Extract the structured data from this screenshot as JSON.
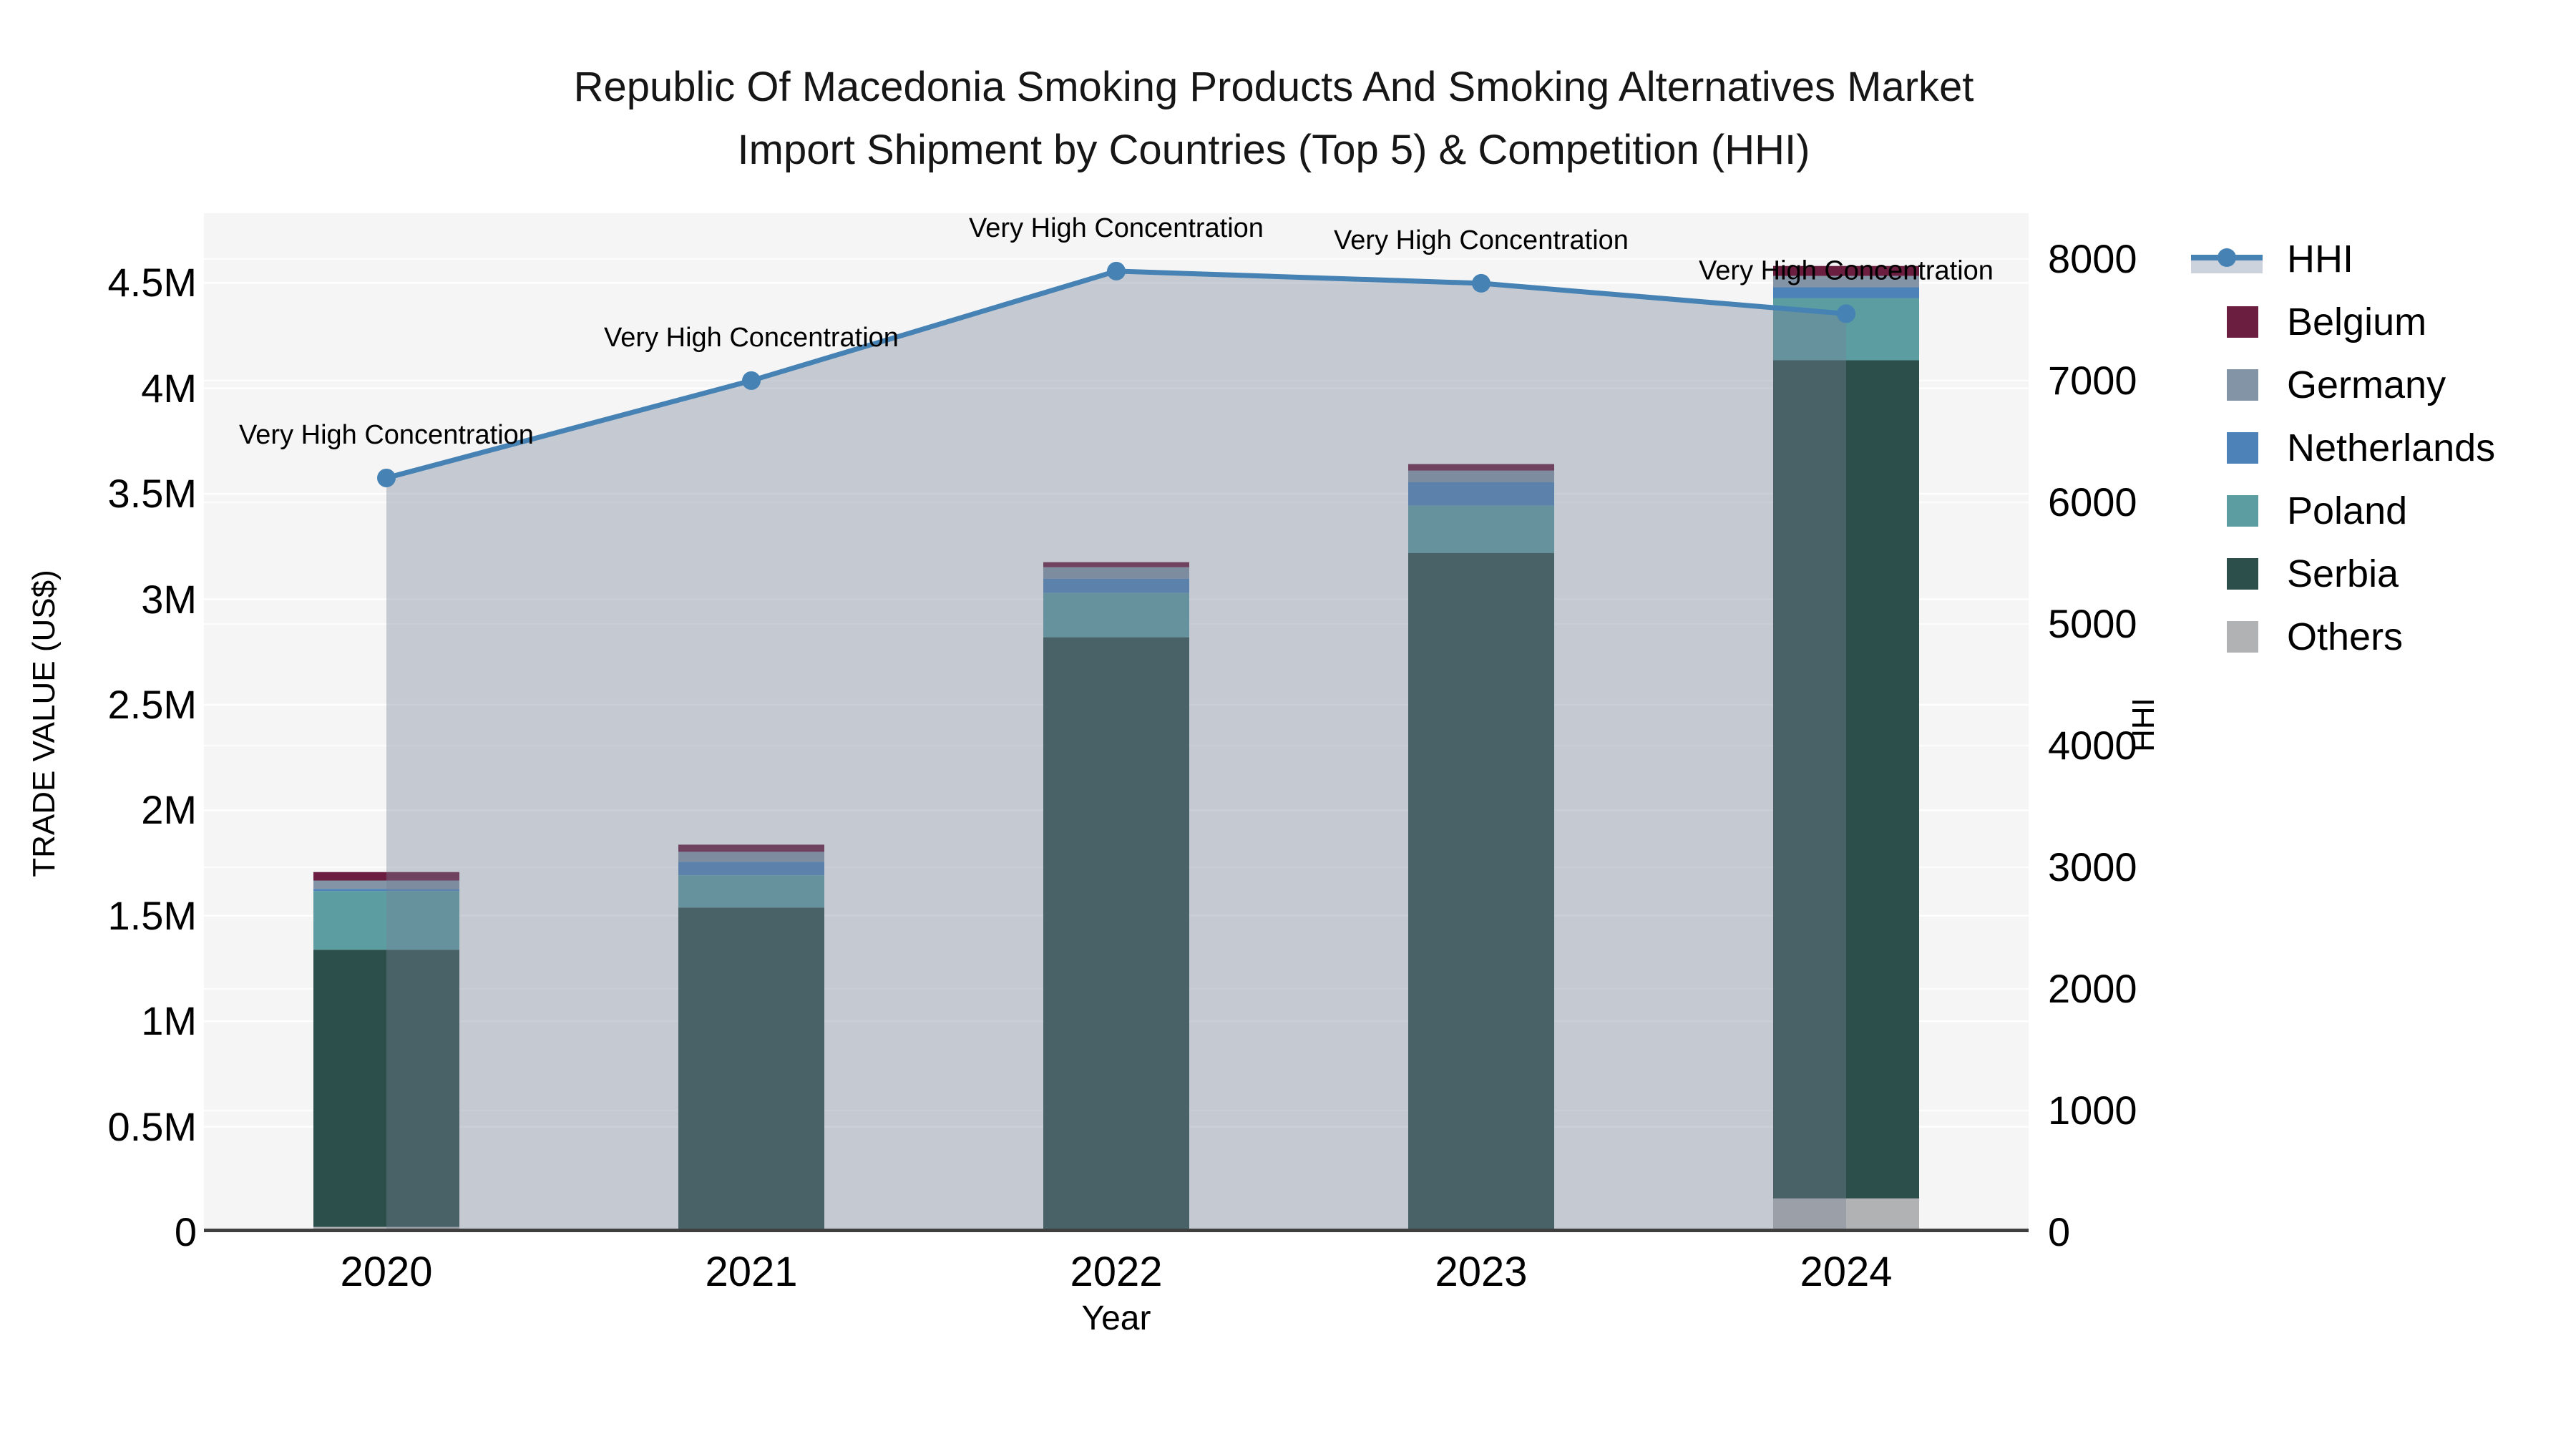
{
  "title": {
    "line1": "Republic Of Macedonia Smoking Products And Smoking Alternatives Market",
    "line2": "Import Shipment by Countries (Top 5) & Competition (HHI)"
  },
  "axes": {
    "y_left": {
      "title": "TRADE VALUE (US$)",
      "tick_labels": [
        "0",
        "0.5M",
        "1M",
        "1.5M",
        "2M",
        "2.5M",
        "3M",
        "3.5M",
        "4M",
        "4.5M"
      ],
      "tick_values": [
        0,
        500000,
        1000000,
        1500000,
        2000000,
        2500000,
        3000000,
        3500000,
        4000000,
        4500000
      ]
    },
    "y_right": {
      "title": "HHI",
      "tick_labels": [
        "0",
        "1000",
        "2000",
        "3000",
        "4000",
        "5000",
        "6000",
        "7000",
        "8000"
      ],
      "tick_values": [
        0,
        1000,
        2000,
        3000,
        4000,
        5000,
        6000,
        7000,
        8000
      ]
    },
    "x": {
      "title": "Year",
      "categories": [
        "2020",
        "2021",
        "2022",
        "2023",
        "2024"
      ]
    }
  },
  "legend": [
    {
      "label": "HHI",
      "type": "line",
      "color": "#4682b4",
      "band_color": "#ccd3dd"
    },
    {
      "label": "Belgium",
      "type": "box",
      "color": "#6b1e3f"
    },
    {
      "label": "Germany",
      "type": "box",
      "color": "#8294a5"
    },
    {
      "label": "Netherlands",
      "type": "box",
      "color": "#4d82b8"
    },
    {
      "label": "Poland",
      "type": "box",
      "color": "#5b9da1"
    },
    {
      "label": "Serbia",
      "type": "box",
      "color": "#2d4f4c"
    },
    {
      "label": "Others",
      "type": "box",
      "color": "#b0b2b4"
    }
  ],
  "chart_data": {
    "type": "bar",
    "subtype": "stacked-bars-with-secondary-axis-line-area",
    "title": "Republic Of Macedonia Smoking Products And Smoking Alternatives Market Import Shipment by Countries (Top 5) & Competition (HHI)",
    "xlabel": "Year",
    "ylabel_left": "TRADE VALUE (US$)",
    "ylabel_right": "HHI",
    "categories": [
      "2020",
      "2021",
      "2022",
      "2023",
      "2024"
    ],
    "bar_stack_bottom_to_top": [
      {
        "name": "Others",
        "color": "#b0b2b4",
        "values": [
          25000,
          17000,
          10000,
          10000,
          160000
        ]
      },
      {
        "name": "Serbia",
        "color": "#2d4f4c",
        "values": [
          1314000,
          1522000,
          2810000,
          3210000,
          3973000
        ]
      },
      {
        "name": "Poland",
        "color": "#5b9da1",
        "values": [
          278000,
          153000,
          210000,
          224000,
          295000
        ]
      },
      {
        "name": "Netherlands",
        "color": "#4d82b8",
        "values": [
          10000,
          64000,
          68000,
          112000,
          51000
        ]
      },
      {
        "name": "Germany",
        "color": "#8294a5",
        "values": [
          40000,
          47000,
          54000,
          54000,
          54000
        ]
      },
      {
        "name": "Belgium",
        "color": "#6b1e3f",
        "values": [
          40000,
          34000,
          24000,
          31000,
          47000
        ]
      }
    ],
    "bar_totals": [
      1707000,
      1837000,
      3176000,
      3641000,
      4580000
    ],
    "line_series": {
      "name": "HHI",
      "axis": "right",
      "color": "#4682b4",
      "area_fill": "rgba(119,129,149,0.38)",
      "values": [
        6200,
        7000,
        7900,
        7800,
        7550
      ]
    },
    "annotations": [
      "Very High Concentration",
      "Very High Concentration",
      "Very High Concentration",
      "Very High Concentration",
      "Very High Concentration"
    ],
    "ylim_left": [
      0,
      4830000
    ],
    "ylim_right": [
      0,
      8376
    ],
    "plot_bg": "#f5f5f5",
    "grid_color": "#ffffff",
    "axis_line_color": "#3f3f3f",
    "grid": "on",
    "legend_position": "right"
  }
}
